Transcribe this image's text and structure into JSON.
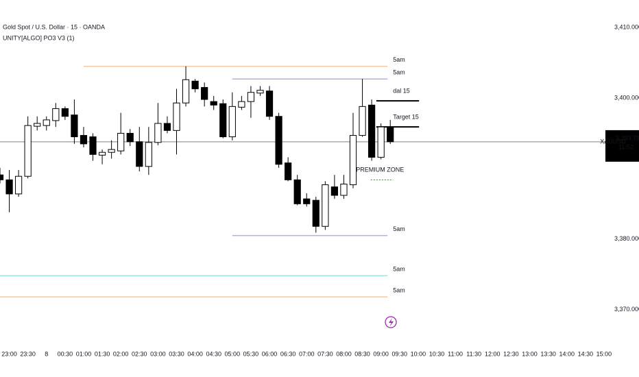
{
  "chart_data": {
    "type": "candlestick",
    "title": "Gold Spot / U.S. Dollar · 15 · OANDA",
    "subtitle": "UNITY[ALGO] PO3 V3 (1)",
    "symbol": "XAUUSD",
    "price": 3393.79,
    "price_label": "3,393.790",
    "countdown": "11:52",
    "xlim": [
      -1,
      64.3
    ],
    "ylim": [
      3365.3,
      3413.9
    ],
    "yticks": [
      {
        "value": 3410,
        "label": "3,410.000"
      },
      {
        "value": 3400,
        "label": "3,400.000"
      },
      {
        "value": 3380,
        "label": "3,380.000"
      },
      {
        "value": 3370,
        "label": "3,370.000"
      }
    ],
    "xticks": [
      {
        "value": 0,
        "label": "23:00"
      },
      {
        "value": 2,
        "label": "23:30"
      },
      {
        "value": 4,
        "label": "8"
      },
      {
        "value": 6,
        "label": "00:30"
      },
      {
        "value": 8,
        "label": "01:00"
      },
      {
        "value": 10,
        "label": "01:30"
      },
      {
        "value": 12,
        "label": "02:00"
      },
      {
        "value": 14,
        "label": "02:30"
      },
      {
        "value": 16,
        "label": "03:00"
      },
      {
        "value": 18,
        "label": "03:30"
      },
      {
        "value": 20,
        "label": "04:00"
      },
      {
        "value": 22,
        "label": "04:30"
      },
      {
        "value": 24,
        "label": "05:00"
      },
      {
        "value": 26,
        "label": "05:30"
      },
      {
        "value": 28,
        "label": "06:00"
      },
      {
        "value": 30,
        "label": "06:30"
      },
      {
        "value": 32,
        "label": "07:00"
      },
      {
        "value": 34,
        "label": "07:30"
      },
      {
        "value": 36,
        "label": "08:00"
      },
      {
        "value": 38,
        "label": "08:30"
      },
      {
        "value": 40,
        "label": "09:00"
      },
      {
        "value": 42,
        "label": "09:30"
      },
      {
        "value": 44,
        "label": "10:00"
      },
      {
        "value": 46,
        "label": "10:30"
      },
      {
        "value": 48,
        "label": "11:00"
      },
      {
        "value": 50,
        "label": "11:30"
      },
      {
        "value": 52,
        "label": "12:00"
      },
      {
        "value": 54,
        "label": "12:30"
      },
      {
        "value": 56,
        "label": "13:00"
      },
      {
        "value": 58,
        "label": "13:30"
      },
      {
        "value": 60,
        "label": "14:00"
      },
      {
        "value": 62,
        "label": "14:30"
      },
      {
        "value": 64,
        "label": "15:00"
      }
    ],
    "up_color": "#ffffff",
    "down_color": "#000000",
    "x": [
      -1,
      0,
      1,
      2,
      3,
      4,
      5,
      6,
      7,
      8,
      9,
      10,
      11,
      12,
      13,
      14,
      15,
      16,
      17,
      18,
      19,
      20,
      21,
      22,
      23,
      24,
      25,
      26,
      27,
      28,
      29,
      30,
      31,
      32,
      33,
      34,
      35,
      36,
      37,
      38,
      39,
      40,
      41
    ],
    "open": [
      3389.1,
      3388.4,
      3386.4,
      3388.9,
      3396.0,
      3396.1,
      3396.8,
      3398.5,
      3397.6,
      3394.7,
      3394.5,
      3391.9,
      3392.3,
      3392.5,
      3395.0,
      3393.8,
      3390.3,
      3393.7,
      3396.4,
      3395.4,
      3399.3,
      3402.4,
      3401.5,
      3399.5,
      3399.2,
      3394.5,
      3398.7,
      3399.5,
      3400.7,
      3401.0,
      3397.4,
      3390.8,
      3388.4,
      3385.7,
      3385.5,
      3381.8,
      3387.4,
      3386.2,
      3387.7,
      3394.7,
      3399.0,
      3391.6,
      3395.9
    ],
    "high": [
      3390.1,
      3389.8,
      3389.8,
      3397.4,
      3397.4,
      3397.4,
      3399.3,
      3398.8,
      3399.8,
      3395.9,
      3395.0,
      3392.7,
      3394.0,
      3397.9,
      3395.6,
      3395.9,
      3395.9,
      3399.3,
      3397.4,
      3401.3,
      3404.5,
      3402.7,
      3402.2,
      3400.3,
      3399.8,
      3400.8,
      3400.3,
      3401.7,
      3401.7,
      3401.7,
      3397.9,
      3391.6,
      3389.1,
      3386.5,
      3386.0,
      3388.2,
      3389.1,
      3389.1,
      3397.9,
      3402.7,
      3399.8,
      3396.4,
      3396.9
    ],
    "low": [
      3387.9,
      3383.8,
      3386.0,
      3388.6,
      3395.4,
      3395.4,
      3395.9,
      3396.9,
      3393.5,
      3393.0,
      3391.1,
      3390.6,
      3391.4,
      3392.0,
      3393.2,
      3389.6,
      3389.1,
      3393.3,
      3395.0,
      3392.0,
      3398.8,
      3400.8,
      3398.8,
      3398.3,
      3394.3,
      3394.0,
      3398.3,
      3397.2,
      3400.3,
      3396.9,
      3390.1,
      3388.2,
      3384.8,
      3384.6,
      3380.9,
      3381.3,
      3385.7,
      3385.7,
      3387.2,
      3394.5,
      3391.1,
      3391.3,
      3393.5
    ],
    "close": [
      3388.4,
      3386.4,
      3388.9,
      3396.1,
      3396.4,
      3396.9,
      3398.5,
      3397.4,
      3394.5,
      3393.5,
      3392.0,
      3392.3,
      3392.7,
      3395.0,
      3393.8,
      3390.3,
      3393.7,
      3396.4,
      3395.4,
      3399.3,
      3402.6,
      3401.3,
      3399.8,
      3399.0,
      3394.5,
      3398.8,
      3399.5,
      3400.8,
      3401.1,
      3397.4,
      3390.6,
      3388.4,
      3385.0,
      3385.0,
      3381.8,
      3387.7,
      3386.2,
      3387.8,
      3394.7,
      3398.8,
      3391.6,
      3395.9,
      3393.8
    ],
    "levels": [
      {
        "label": "5am",
        "value": 3404.5,
        "color": "#f7c89b",
        "x0": 8
      },
      {
        "label": "5am",
        "value": 3402.7,
        "color": "#b8a9e8",
        "x0": 24
      },
      {
        "label": "dal 15",
        "value": 3399.6,
        "color": "#000000",
        "x0": 39.5
      },
      {
        "label": "Target 15",
        "value": 3395.9,
        "color": "#000000",
        "x0": 39.5
      },
      {
        "label": "5am",
        "value": 3380.5,
        "color": "#b8a9e8",
        "x0": 24
      },
      {
        "label": "5am",
        "value": 3374.8,
        "color": "#9ee5e5",
        "x0": -1
      },
      {
        "label": "5am",
        "value": 3371.8,
        "color": "#f7c89b",
        "x0": -1
      }
    ],
    "label_colors": [
      "#e8953f",
      "#8a6fd6",
      "#e8953f",
      "#3a6fd6",
      "#8a6fd6",
      "#2bbcbc",
      "#e8953f"
    ],
    "zone_label": "PREMIUM ZONE",
    "zone_value": 3388.4
  }
}
